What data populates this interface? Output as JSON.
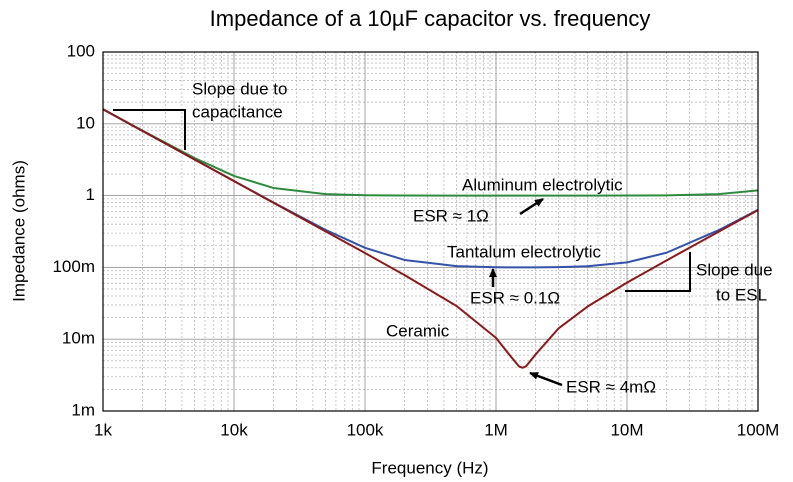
{
  "chart_data": {
    "type": "line",
    "title": "Impedance of a 10µF capacitor vs. frequency",
    "x_label": "Frequency (Hz)",
    "y_label": "Impedance (ohms)",
    "log_x": true,
    "log_y": true,
    "grid": true,
    "x": [
      1000,
      2000,
      5000,
      10000,
      20000,
      50000,
      100000,
      200000,
      500000,
      1000000,
      1300000,
      1500000,
      1600000,
      1700000,
      2000000,
      3000000,
      5000000,
      10000000,
      20000000,
      50000000,
      100000000
    ],
    "series": [
      {
        "name": "Aluminum electrolytic",
        "color": "#2e8b3e",
        "values": [
          15.947,
          8.021,
          3.336,
          1.8796,
          1.2779,
          1.0493,
          1.0125,
          1.0031,
          1.0004,
          1.0,
          1.0,
          1.0,
          1.0,
          1.0,
          1.0,
          1.0001,
          1.0004,
          1.0019,
          1.0078,
          1.0481,
          1.1806
        ]
      },
      {
        "name": "Tantalum electrolytic",
        "color": "#3352a8",
        "values": [
          15.915,
          7.959,
          3.185,
          1.5947,
          0.8019,
          0.3334,
          0.1874,
          0.127,
          0.104,
          0.1005,
          0.1001,
          0.1,
          0.1,
          0.1,
          0.1001,
          0.1009,
          0.1039,
          0.1173,
          0.16,
          0.3294,
          0.6361
        ]
      },
      {
        "name": "Ceramic",
        "color": "#8b1a1a",
        "values": [
          15.915,
          7.958,
          3.183,
          1.5915,
          0.7956,
          0.318,
          0.1585,
          0.0783,
          0.02897,
          0.01043,
          0.00571,
          0.00417,
          0.004,
          0.00421,
          0.0061,
          0.01412,
          0.02852,
          0.0614,
          0.1249,
          0.3139,
          0.6282
        ]
      }
    ],
    "xlim": [
      1000,
      100000000
    ],
    "ylim": [
      0.001,
      100
    ],
    "xticks": [
      {
        "value": 1000,
        "label": "1k"
      },
      {
        "value": 10000,
        "label": "10k"
      },
      {
        "value": 100000,
        "label": "100k"
      },
      {
        "value": 1000000,
        "label": "1M"
      },
      {
        "value": 10000000,
        "label": "10M"
      },
      {
        "value": 100000000,
        "label": "100M"
      }
    ],
    "yticks": [
      {
        "value": 0.001,
        "label": "1m"
      },
      {
        "value": 0.01,
        "label": "10m"
      },
      {
        "value": 0.1,
        "label": "100m"
      },
      1,
      10,
      100
    ],
    "annotations": [
      "Slope due to",
      "capacitance",
      "Aluminum electrolytic",
      "ESR ≈ 1Ω",
      "Tantalum electrolytic",
      "ESR ≈ 0.1Ω",
      "Ceramic",
      "ESR ≈ 4mΩ",
      "Slope due",
      "to ESL"
    ]
  }
}
